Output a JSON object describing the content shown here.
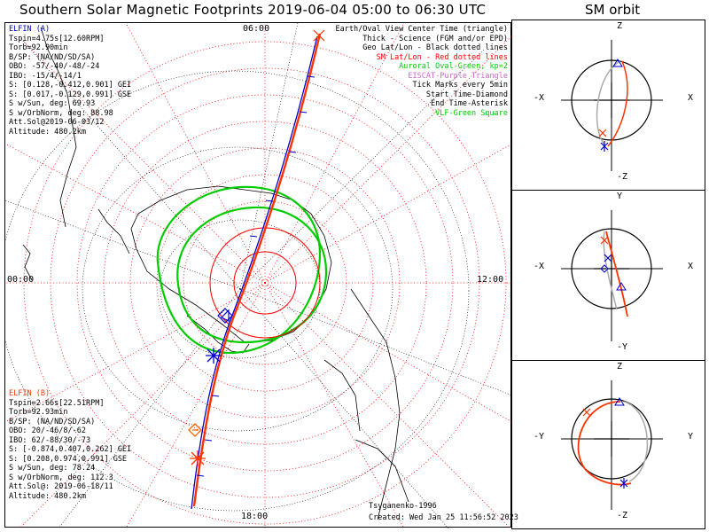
{
  "title": "Southern Solar Magnetic Footprints 2019-06-04 05:00 to 06:30 UTC",
  "orbit_title": "SM orbit",
  "clock_labels": {
    "top": "06:00",
    "left": "00:00",
    "right": "12:00",
    "bottom": "18:00"
  },
  "legend": [
    {
      "text": "Earth/Oval View Center Time (triangle)",
      "color": "#000000"
    },
    {
      "text": "Thick - Science (FGM and/or EPD)",
      "color": "#000000"
    },
    {
      "text": "Geo Lat/Lon - Black dotted lines",
      "color": "#000000"
    },
    {
      "text": "SM Lat/Lon - Red dotted lines",
      "color": "#ff0000"
    },
    {
      "text": "Auroral Oval-Green, kp=2",
      "color": "#00cc00"
    },
    {
      "text": "EISCAT-Purple Triangle",
      "color": "#cc66cc"
    },
    {
      "text": "Tick Marks every 5min",
      "color": "#000000"
    },
    {
      "text": "Start Time-Diamond",
      "color": "#000000"
    },
    {
      "text": "End Time-Asterisk",
      "color": "#000000"
    },
    {
      "text": "VLF-Green Square",
      "color": "#00cc00"
    }
  ],
  "elfin_a": {
    "name": "ELFIN (A)",
    "color": "#0000cc",
    "lines": [
      "Tspin=4.75s[12.60RPM]",
      "Torb=92.90min",
      "B/SP: (NA/ND/SD/SA)",
      "OBO: -57/-40/-48/-24",
      "IBO: -15/4/-14/1",
      "S: [0.128,-0.412,0.901] GEI",
      "S: [0.017,-0.129,0.991] GSE",
      "S w/Sun, deg: 69.93",
      "S w/OrbNorm, deg: 88.98",
      "Att.Sol@2019-06-03/12",
      "Altitude: 480.2km"
    ]
  },
  "elfin_b": {
    "name": "ELFIN (B)",
    "color": "#ff3300",
    "lines": [
      "Tspin=2.66s[22.51RPM]",
      "Torb=92.93min",
      "B/SP: (NA/ND/SD/SA)",
      "OBO: 20/-46/8/-62",
      "IBO: 62/-88/30/-73",
      "S: [-0.874,0.407,0.262] GEI",
      "S: [0.208,0.974,0.991] GSE",
      "S w/Sun, deg: 78.24",
      "S w/OrbNorm, deg: 112.3",
      "Att.Sol@: 2019-06-18/11",
      "Altitude: 480.2km"
    ]
  },
  "credit": "Tsyganenko-1996",
  "created": "Created: Wed Jan 25 11:56:52 2023",
  "panels": [
    {
      "top": "Z",
      "bottom": "-Z",
      "left": "-X",
      "right": "X"
    },
    {
      "top": "Y",
      "bottom": "-Y",
      "left": "-X",
      "right": "X"
    },
    {
      "top": "Z",
      "bottom": "-Z",
      "left": "-Y",
      "right": "Y"
    }
  ],
  "colors": {
    "sm_grid": "#ff0000",
    "geo_grid": "#000000",
    "oval": "#00cc00",
    "elfin_a": "#0000cc",
    "elfin_b": "#ff3300"
  }
}
